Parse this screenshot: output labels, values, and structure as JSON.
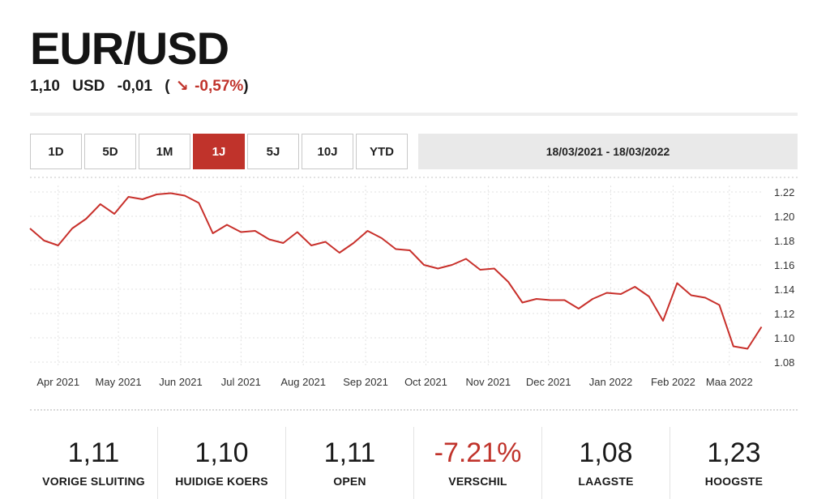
{
  "header": {
    "title": "EUR/USD",
    "price": "1,10",
    "currency": "USD",
    "change": "-0,01",
    "paren_open": "(",
    "arrow": "↘",
    "change_pct": "-0,57%",
    "paren_close": ")"
  },
  "ranges": {
    "items": [
      "1D",
      "5D",
      "1M",
      "1J",
      "5J",
      "10J",
      "YTD"
    ],
    "active": "1J"
  },
  "date_range": "18/03/2021 - 18/03/2022",
  "colors": {
    "accent": "#c0332b",
    "line": "#c8302b",
    "grid": "#e2e2e2"
  },
  "chart_data": {
    "type": "line",
    "title": "",
    "xlabel": "",
    "ylabel": "",
    "ylim": [
      1.08,
      1.22
    ],
    "yticks": [
      "1.22",
      "1.20",
      "1.18",
      "1.16",
      "1.14",
      "1.12",
      "1.10",
      "1.08"
    ],
    "ytick_values": [
      1.22,
      1.2,
      1.18,
      1.16,
      1.14,
      1.12,
      1.1,
      1.08
    ],
    "xlim": [
      "2021-03-18",
      "2022-03-18"
    ],
    "xticks": [
      {
        "label": "Apr 2021",
        "date": "2021-04-01"
      },
      {
        "label": "May 2021",
        "date": "2021-05-01"
      },
      {
        "label": "Jun 2021",
        "date": "2021-06-01"
      },
      {
        "label": "Jul 2021",
        "date": "2021-07-01"
      },
      {
        "label": "Aug 2021",
        "date": "2021-08-01"
      },
      {
        "label": "Sep 2021",
        "date": "2021-09-01"
      },
      {
        "label": "Oct 2021",
        "date": "2021-10-01"
      },
      {
        "label": "Nov 2021",
        "date": "2021-11-01"
      },
      {
        "label": "Dec 2021",
        "date": "2021-12-01"
      },
      {
        "label": "Jan 2022",
        "date": "2022-01-01"
      },
      {
        "label": "Feb 2022",
        "date": "2022-02-01"
      },
      {
        "label": "Maa 2022",
        "date": "2022-03-01"
      }
    ],
    "grid": true,
    "legend": "none",
    "series": [
      {
        "points": [
          {
            "x": "2021-03-18",
            "y": 1.19
          },
          {
            "x": "2021-03-25",
            "y": 1.18
          },
          {
            "x": "2021-04-01",
            "y": 1.176
          },
          {
            "x": "2021-04-08",
            "y": 1.19
          },
          {
            "x": "2021-04-15",
            "y": 1.198
          },
          {
            "x": "2021-04-22",
            "y": 1.21
          },
          {
            "x": "2021-04-29",
            "y": 1.202
          },
          {
            "x": "2021-05-06",
            "y": 1.216
          },
          {
            "x": "2021-05-13",
            "y": 1.214
          },
          {
            "x": "2021-05-20",
            "y": 1.218
          },
          {
            "x": "2021-05-27",
            "y": 1.219
          },
          {
            "x": "2021-06-03",
            "y": 1.217
          },
          {
            "x": "2021-06-10",
            "y": 1.211
          },
          {
            "x": "2021-06-17",
            "y": 1.186
          },
          {
            "x": "2021-06-24",
            "y": 1.193
          },
          {
            "x": "2021-07-01",
            "y": 1.187
          },
          {
            "x": "2021-07-08",
            "y": 1.188
          },
          {
            "x": "2021-07-15",
            "y": 1.181
          },
          {
            "x": "2021-07-22",
            "y": 1.178
          },
          {
            "x": "2021-07-29",
            "y": 1.187
          },
          {
            "x": "2021-08-05",
            "y": 1.176
          },
          {
            "x": "2021-08-12",
            "y": 1.179
          },
          {
            "x": "2021-08-19",
            "y": 1.17
          },
          {
            "x": "2021-08-26",
            "y": 1.178
          },
          {
            "x": "2021-09-02",
            "y": 1.188
          },
          {
            "x": "2021-09-09",
            "y": 1.182
          },
          {
            "x": "2021-09-16",
            "y": 1.173
          },
          {
            "x": "2021-09-23",
            "y": 1.172
          },
          {
            "x": "2021-09-30",
            "y": 1.16
          },
          {
            "x": "2021-10-07",
            "y": 1.157
          },
          {
            "x": "2021-10-14",
            "y": 1.16
          },
          {
            "x": "2021-10-21",
            "y": 1.165
          },
          {
            "x": "2021-10-28",
            "y": 1.156
          },
          {
            "x": "2021-11-04",
            "y": 1.157
          },
          {
            "x": "2021-11-11",
            "y": 1.146
          },
          {
            "x": "2021-11-18",
            "y": 1.129
          },
          {
            "x": "2021-11-25",
            "y": 1.132
          },
          {
            "x": "2021-12-02",
            "y": 1.131
          },
          {
            "x": "2021-12-09",
            "y": 1.131
          },
          {
            "x": "2021-12-16",
            "y": 1.124
          },
          {
            "x": "2021-12-23",
            "y": 1.132
          },
          {
            "x": "2021-12-30",
            "y": 1.137
          },
          {
            "x": "2022-01-06",
            "y": 1.136
          },
          {
            "x": "2022-01-13",
            "y": 1.142
          },
          {
            "x": "2022-01-20",
            "y": 1.134
          },
          {
            "x": "2022-01-27",
            "y": 1.114
          },
          {
            "x": "2022-02-03",
            "y": 1.145
          },
          {
            "x": "2022-02-10",
            "y": 1.135
          },
          {
            "x": "2022-02-17",
            "y": 1.133
          },
          {
            "x": "2022-02-24",
            "y": 1.127
          },
          {
            "x": "2022-03-03",
            "y": 1.093
          },
          {
            "x": "2022-03-10",
            "y": 1.091
          },
          {
            "x": "2022-03-17",
            "y": 1.109
          }
        ]
      }
    ]
  },
  "stats": [
    {
      "value": "1,11",
      "label": "VORIGE SLUITING",
      "negative": false
    },
    {
      "value": "1,10",
      "label": "HUIDIGE KOERS",
      "negative": false
    },
    {
      "value": "1,11",
      "label": "OPEN",
      "negative": false
    },
    {
      "value": "-7.21%",
      "label": "VERSCHIL",
      "negative": true
    },
    {
      "value": "1,08",
      "label": "LAAGSTE",
      "negative": false
    },
    {
      "value": "1,23",
      "label": "HOOGSTE",
      "negative": false
    }
  ]
}
